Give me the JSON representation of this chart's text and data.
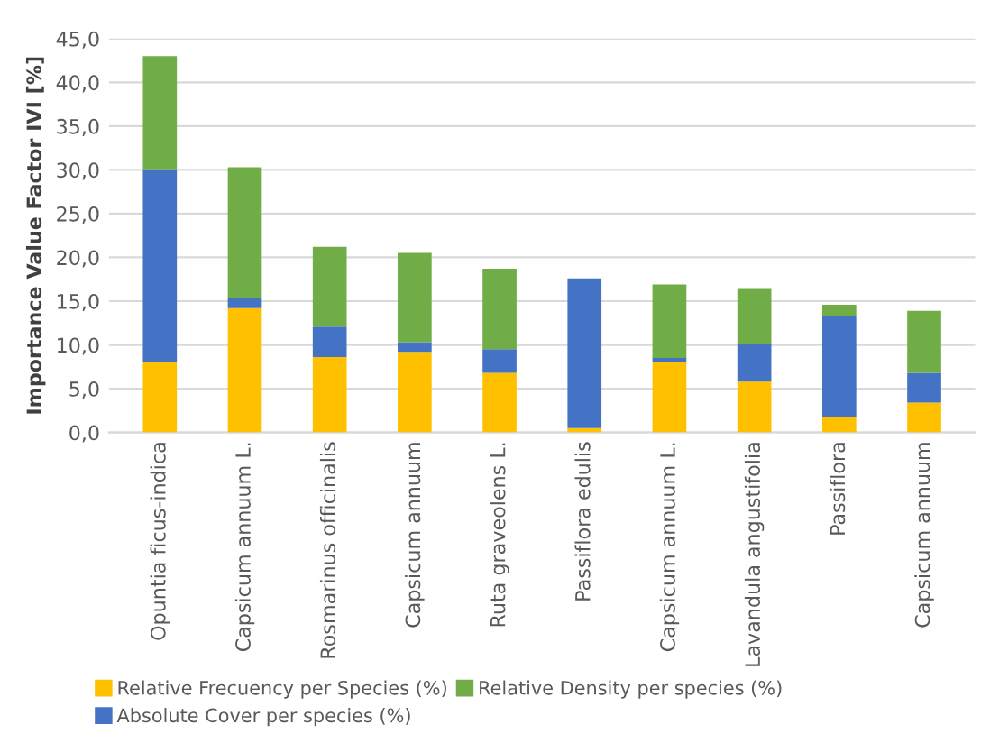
{
  "chart_data": {
    "type": "bar",
    "stacked": true,
    "ylabel": "Importance Value Factor IVI [%]",
    "categories": [
      "Opuntia ficus-indica",
      "Capsicum annuum L.",
      "Rosmarinus officinalis",
      "Capsicum annuum",
      "Ruta graveolens L.",
      "Passiflora edulis",
      "Capsicum annuum L.",
      "Lavandula angustifolia",
      "Passiflora",
      "Capsicum annuum"
    ],
    "series": [
      {
        "name": "Relative Frecuency per Species (%)",
        "color": "#ffc000",
        "values": [
          8.0,
          14.2,
          8.6,
          9.2,
          6.8,
          0.5,
          8.0,
          5.8,
          1.8,
          3.4
        ]
      },
      {
        "name": "Absolute Cover per species (%)",
        "color": "#4472c4",
        "values": [
          22.1,
          1.1,
          3.5,
          1.1,
          2.7,
          17.1,
          0.5,
          4.3,
          11.5,
          3.4
        ]
      },
      {
        "name": "Relative Density per species (%)",
        "color": "#70ad47",
        "values": [
          12.9,
          15.0,
          9.1,
          10.2,
          9.2,
          0,
          8.4,
          6.4,
          1.3,
          7.1
        ]
      }
    ],
    "ylim": [
      0,
      45
    ],
    "yticks": [
      {
        "value": 0,
        "label": "0,0"
      },
      {
        "value": 5,
        "label": "5,0"
      },
      {
        "value": 10,
        "label": "10,0"
      },
      {
        "value": 15,
        "label": "15,0"
      },
      {
        "value": 20,
        "label": "20,0"
      },
      {
        "value": 25,
        "label": "25,0"
      },
      {
        "value": 30,
        "label": "30,0"
      },
      {
        "value": 35,
        "label": "35,0"
      },
      {
        "value": 40,
        "label": "40,0"
      },
      {
        "value": 45,
        "label": "45,0"
      }
    ],
    "grid": "y",
    "legend": "bottom"
  }
}
